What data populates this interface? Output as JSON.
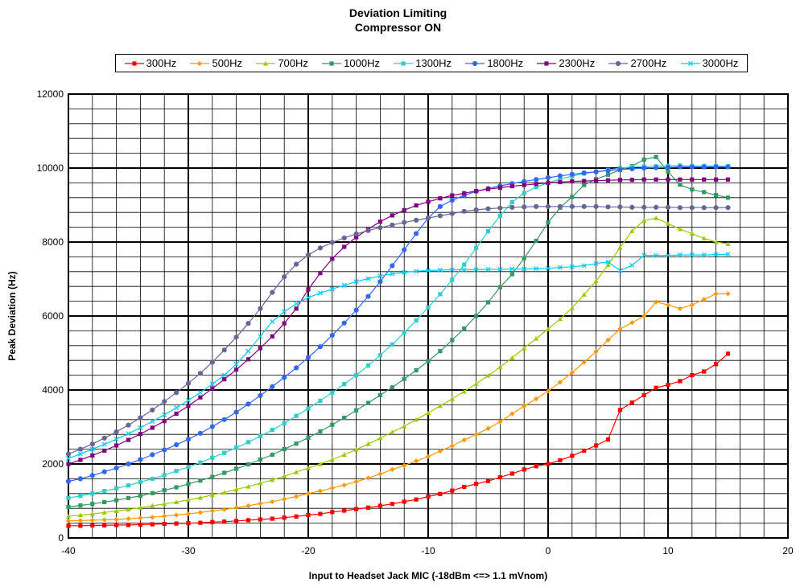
{
  "chart_data": {
    "type": "line",
    "title": "Deviation Limiting",
    "subtitle": "Compressor ON",
    "xlabel": "Input to Headset Jack MIC (-18dBm <=> 1.1 mVnom)",
    "ylabel": "Peak Deviation (Hz)",
    "xlim": [
      -40,
      20
    ],
    "ylim": [
      0,
      12000
    ],
    "x_ticks": [
      "-40",
      "-30",
      "-20",
      "-10",
      "0",
      "10",
      "20"
    ],
    "y_ticks": [
      "0",
      "2000",
      "4000",
      "6000",
      "8000",
      "10000",
      "12000"
    ],
    "grid": true,
    "legend_position": "top",
    "x": [
      -40,
      -39,
      -38,
      -37,
      -36,
      -35,
      -34,
      -33,
      -32,
      -31,
      -30,
      -29,
      -28,
      -27,
      -26,
      -25,
      -24,
      -23,
      -22,
      -21,
      -20,
      -19,
      -18,
      -17,
      -16,
      -15,
      -14,
      -13,
      -12,
      -11,
      -10,
      -9,
      -8,
      -7,
      -6,
      -5,
      -4,
      -3,
      -2,
      -1,
      0,
      1,
      2,
      3,
      4,
      5,
      6,
      7,
      8,
      9,
      10,
      11,
      12,
      13,
      14,
      15
    ],
    "series": [
      {
        "name": "300Hz",
        "color": "#ff0000",
        "marker": "square",
        "values": [
          330,
          330,
          340,
          340,
          350,
          350,
          360,
          370,
          380,
          390,
          400,
          410,
          430,
          440,
          460,
          480,
          500,
          520,
          550,
          580,
          620,
          650,
          700,
          740,
          780,
          820,
          870,
          920,
          980,
          1040,
          1120,
          1190,
          1280,
          1380,
          1460,
          1540,
          1640,
          1740,
          1850,
          1940,
          2000,
          2100,
          2220,
          2360,
          2500,
          2660,
          3460,
          3660,
          3860,
          4060,
          4140,
          4240,
          4400,
          4500,
          4700,
          4980
        ]
      },
      {
        "name": "500Hz",
        "color": "#ff9900",
        "marker": "diamond",
        "values": [
          460,
          470,
          480,
          490,
          500,
          520,
          540,
          560,
          590,
          620,
          650,
          690,
          730,
          770,
          820,
          870,
          930,
          980,
          1050,
          1120,
          1200,
          1270,
          1350,
          1430,
          1520,
          1620,
          1730,
          1850,
          1960,
          2080,
          2200,
          2350,
          2490,
          2650,
          2800,
          2960,
          3140,
          3360,
          3560,
          3760,
          3970,
          4210,
          4470,
          4750,
          5040,
          5350,
          5650,
          5820,
          6000,
          6380,
          6300,
          6200,
          6300,
          6450,
          6600,
          6600
        ]
      },
      {
        "name": "700Hz",
        "color": "#99cc00",
        "marker": "triangle",
        "values": [
          590,
          620,
          650,
          690,
          730,
          770,
          820,
          870,
          920,
          970,
          1030,
          1090,
          1160,
          1230,
          1310,
          1390,
          1480,
          1570,
          1670,
          1780,
          1890,
          2000,
          2120,
          2250,
          2390,
          2540,
          2700,
          2860,
          3020,
          3200,
          3380,
          3570,
          3760,
          3960,
          4170,
          4390,
          4620,
          4870,
          5130,
          5390,
          5650,
          5920,
          6220,
          6580,
          6950,
          7380,
          7850,
          8300,
          8580,
          8650,
          8500,
          8350,
          8230,
          8100,
          8000,
          7950
        ]
      },
      {
        "name": "1000Hz",
        "color": "#339966",
        "marker": "square",
        "values": [
          840,
          880,
          920,
          970,
          1020,
          1080,
          1140,
          1210,
          1290,
          1370,
          1460,
          1550,
          1650,
          1760,
          1870,
          1990,
          2120,
          2250,
          2400,
          2550,
          2710,
          2880,
          3060,
          3250,
          3450,
          3650,
          3860,
          4070,
          4300,
          4530,
          4780,
          5050,
          5350,
          5660,
          6000,
          6370,
          6780,
          7130,
          7560,
          8030,
          8530,
          8930,
          9220,
          9540,
          9700,
          9820,
          9950,
          10050,
          10230,
          10300,
          9900,
          9550,
          9420,
          9350,
          9270,
          9200
        ]
      },
      {
        "name": "1300Hz",
        "color": "#33cccc",
        "marker": "square",
        "values": [
          1080,
          1140,
          1200,
          1270,
          1340,
          1420,
          1510,
          1600,
          1700,
          1810,
          1920,
          2040,
          2170,
          2300,
          2440,
          2590,
          2750,
          2920,
          3100,
          3300,
          3500,
          3710,
          3930,
          4160,
          4400,
          4660,
          4940,
          5230,
          5550,
          5880,
          6230,
          6590,
          6980,
          7390,
          7840,
          8290,
          8710,
          9080,
          9320,
          9490,
          9600,
          9700,
          9780,
          9850,
          9900,
          9950,
          10000,
          10030,
          10040,
          10050,
          10060,
          10070,
          10060,
          10060,
          10050,
          10050
        ]
      },
      {
        "name": "1800Hz",
        "color": "#3366ff",
        "marker": "circle",
        "values": [
          1530,
          1600,
          1690,
          1790,
          1890,
          2000,
          2120,
          2250,
          2380,
          2520,
          2670,
          2830,
          3010,
          3200,
          3400,
          3620,
          3850,
          4090,
          4340,
          4600,
          4880,
          5170,
          5480,
          5810,
          6160,
          6530,
          6930,
          7360,
          7790,
          8230,
          8650,
          8960,
          9130,
          9260,
          9370,
          9450,
          9520,
          9580,
          9640,
          9690,
          9740,
          9790,
          9830,
          9870,
          9900,
          9930,
          9960,
          9980,
          10000,
          10010,
          10020,
          10030,
          10030,
          10030,
          10030,
          10030
        ]
      },
      {
        "name": "2300Hz",
        "color": "#800080",
        "marker": "square",
        "values": [
          2000,
          2110,
          2230,
          2360,
          2500,
          2650,
          2810,
          2980,
          3160,
          3360,
          3570,
          3800,
          4040,
          4290,
          4550,
          4830,
          5130,
          5450,
          5800,
          6200,
          6720,
          7160,
          7550,
          7870,
          8130,
          8350,
          8550,
          8720,
          8860,
          8990,
          9090,
          9180,
          9260,
          9320,
          9380,
          9430,
          9470,
          9510,
          9540,
          9570,
          9600,
          9620,
          9640,
          9650,
          9660,
          9670,
          9680,
          9680,
          9690,
          9690,
          9690,
          9690,
          9690,
          9690,
          9690,
          9690
        ]
      },
      {
        "name": "2700Hz",
        "color": "#666699",
        "marker": "circle",
        "values": [
          2270,
          2400,
          2540,
          2700,
          2870,
          3050,
          3250,
          3460,
          3690,
          3930,
          4180,
          4450,
          4750,
          5080,
          5430,
          5800,
          6200,
          6640,
          7060,
          7400,
          7650,
          7840,
          7990,
          8110,
          8220,
          8310,
          8390,
          8460,
          8530,
          8590,
          8650,
          8710,
          8770,
          8830,
          8870,
          8900,
          8920,
          8940,
          8950,
          8960,
          8960,
          8960,
          8960,
          8960,
          8960,
          8950,
          8950,
          8940,
          8940,
          8940,
          8940,
          8930,
          8930,
          8930,
          8930,
          8930
        ]
      },
      {
        "name": "3000Hz",
        "color": "#00ccff",
        "marker": "x",
        "values": [
          2150,
          2270,
          2400,
          2530,
          2670,
          2820,
          2980,
          3150,
          3330,
          3520,
          3720,
          3930,
          4160,
          4400,
          4700,
          5050,
          5450,
          5850,
          6120,
          6330,
          6500,
          6620,
          6730,
          6830,
          6930,
          7010,
          7080,
          7140,
          7180,
          7210,
          7230,
          7240,
          7250,
          7250,
          7250,
          7260,
          7260,
          7270,
          7270,
          7280,
          7290,
          7310,
          7330,
          7360,
          7420,
          7460,
          7230,
          7370,
          7640,
          7640,
          7640,
          7650,
          7650,
          7650,
          7660,
          7670
        ]
      }
    ]
  }
}
